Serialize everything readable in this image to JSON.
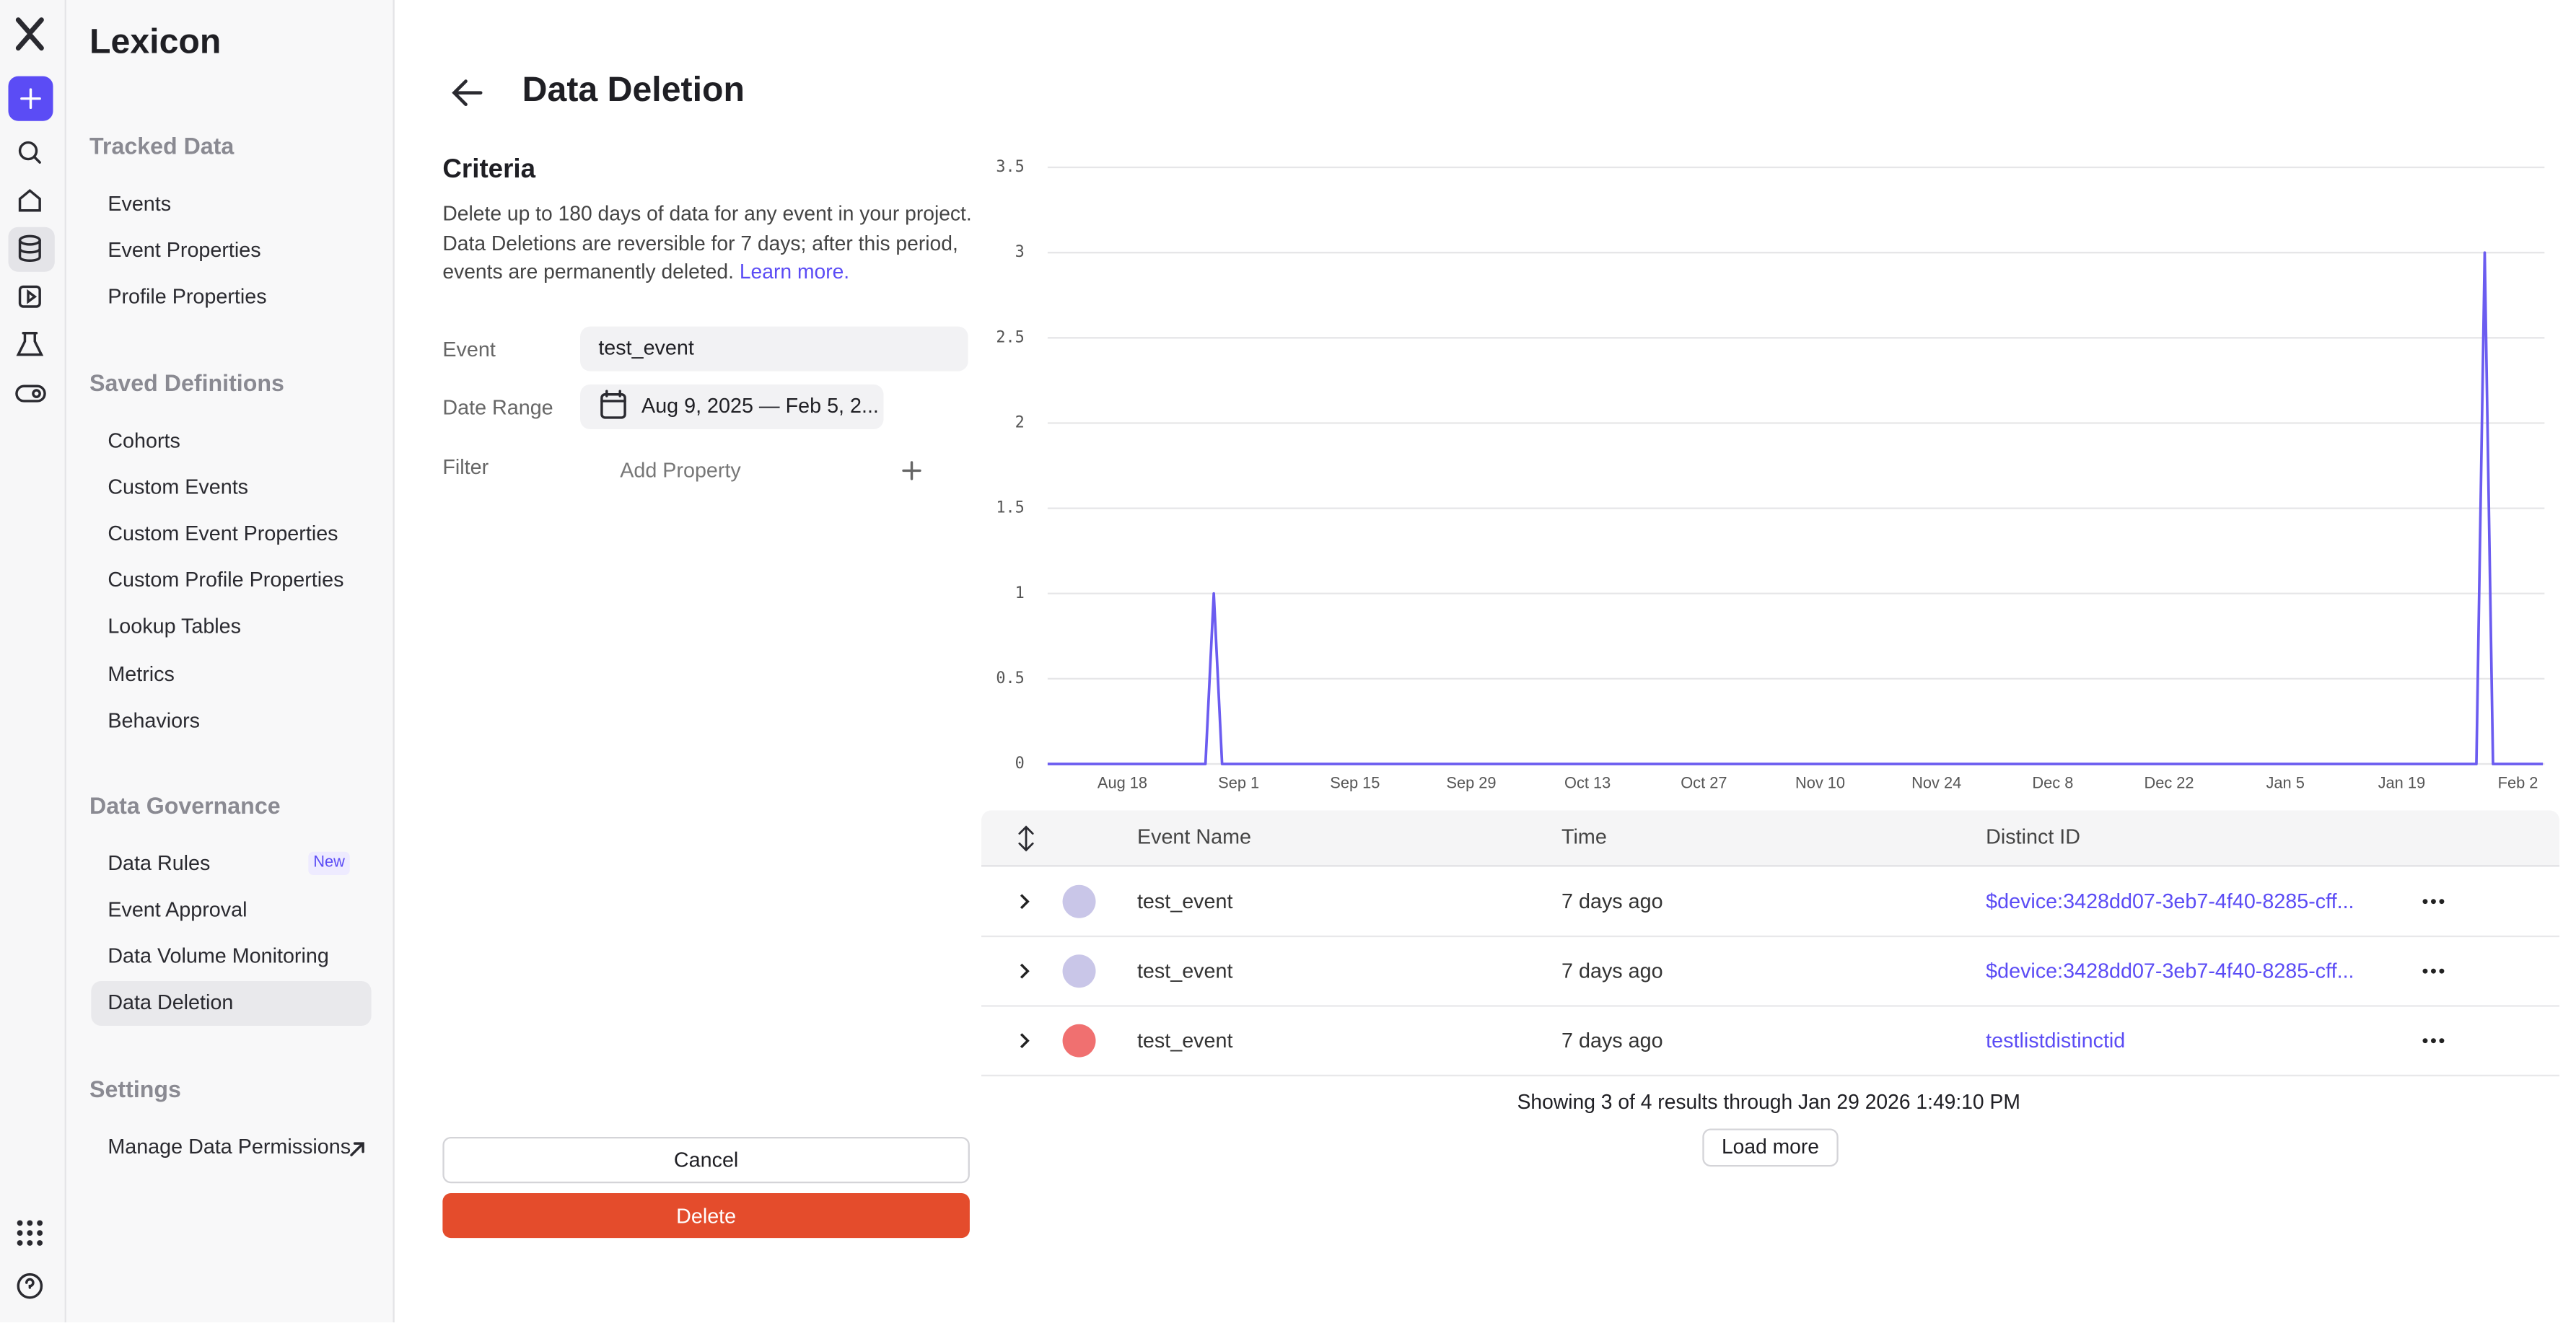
{
  "app": {
    "name": "Lexicon"
  },
  "sidebar": {
    "sections": [
      {
        "title": "Tracked Data",
        "items": [
          "Events",
          "Event Properties",
          "Profile Properties"
        ]
      },
      {
        "title": "Saved Definitions",
        "items": [
          "Cohorts",
          "Custom Events",
          "Custom Event Properties",
          "Custom Profile Properties",
          "Lookup Tables",
          "Metrics",
          "Behaviors"
        ]
      },
      {
        "title": "Data Governance",
        "items": [
          "Data Rules",
          "Event Approval",
          "Data Volume Monitoring",
          "Data Deletion"
        ]
      },
      {
        "title": "Settings",
        "items": [
          "Manage Data Permissions"
        ]
      }
    ],
    "badge": "New"
  },
  "page": {
    "title": "Data Deletion"
  },
  "criteria": {
    "title": "Criteria",
    "description": "Delete up to 180 days of data for any event in your project. Data Deletions are reversible for 7 days; after this period, events are permanently deleted.",
    "link": "Learn more.",
    "event_label": "Event",
    "event_value": "test_event",
    "date_label": "Date Range",
    "date_value": "Aug 9, 2025 — Feb 5, 2...",
    "filter_label": "Filter",
    "filter_placeholder": "Add Property"
  },
  "buttons": {
    "cancel": "Cancel",
    "delete": "Delete"
  },
  "chart_data": {
    "type": "line",
    "color": "#6b5cf0",
    "grid": true,
    "categories": [
      null,
      null,
      null,
      null,
      null,
      null,
      null,
      null,
      null,
      "Aug 18",
      null,
      null,
      null,
      null,
      null,
      null,
      null,
      null,
      null,
      null,
      null,
      null,
      null,
      "Sep 1",
      null,
      null,
      null,
      null,
      null,
      null,
      null,
      null,
      null,
      null,
      null,
      null,
      null,
      "Sep 15",
      null,
      null,
      null,
      null,
      null,
      null,
      null,
      null,
      null,
      null,
      null,
      null,
      null,
      "Sep 29",
      null,
      null,
      null,
      null,
      null,
      null,
      null,
      null,
      null,
      null,
      null,
      null,
      null,
      "Oct 13",
      null,
      null,
      null,
      null,
      null,
      null,
      null,
      null,
      null,
      null,
      null,
      null,
      null,
      "Oct 27",
      null,
      null,
      null,
      null,
      null,
      null,
      null,
      null,
      null,
      null,
      null,
      null,
      null,
      "Nov 10",
      null,
      null,
      null,
      null,
      null,
      null,
      null,
      null,
      null,
      null,
      null,
      null,
      null,
      "Nov 24",
      null,
      null,
      null,
      null,
      null,
      null,
      null,
      null,
      null,
      null,
      null,
      null,
      null,
      "Dec 8",
      null,
      null,
      null,
      null,
      null,
      null,
      null,
      null,
      null,
      null,
      null,
      null,
      null,
      "Dec 22",
      null,
      null,
      null,
      null,
      null,
      null,
      null,
      null,
      null,
      null,
      null,
      null,
      null,
      "Jan 5",
      null,
      null,
      null,
      null,
      null,
      null,
      null,
      null,
      null,
      null,
      null,
      null,
      null,
      "Jan 19",
      null,
      null,
      null,
      null,
      null,
      null,
      null,
      null,
      null,
      null,
      null,
      null,
      null,
      "Feb 2",
      null,
      null,
      null
    ],
    "values": [
      0,
      0,
      0,
      0,
      0,
      0,
      0,
      0,
      0,
      0,
      0,
      0,
      0,
      0,
      0,
      0,
      0,
      0,
      0,
      0,
      1,
      0,
      0,
      0,
      0,
      0,
      0,
      0,
      0,
      0,
      0,
      0,
      0,
      0,
      0,
      0,
      0,
      0,
      0,
      0,
      0,
      0,
      0,
      0,
      0,
      0,
      0,
      0,
      0,
      0,
      0,
      0,
      0,
      0,
      0,
      0,
      0,
      0,
      0,
      0,
      0,
      0,
      0,
      0,
      0,
      0,
      0,
      0,
      0,
      0,
      0,
      0,
      0,
      0,
      0,
      0,
      0,
      0,
      0,
      0,
      0,
      0,
      0,
      0,
      0,
      0,
      0,
      0,
      0,
      0,
      0,
      0,
      0,
      0,
      0,
      0,
      0,
      0,
      0,
      0,
      0,
      0,
      0,
      0,
      0,
      0,
      0,
      0,
      0,
      0,
      0,
      0,
      0,
      0,
      0,
      0,
      0,
      0,
      0,
      0,
      0,
      0,
      0,
      0,
      0,
      0,
      0,
      0,
      0,
      0,
      0,
      0,
      0,
      0,
      0,
      0,
      0,
      0,
      0,
      0,
      0,
      0,
      0,
      0,
      0,
      0,
      0,
      0,
      0,
      0,
      0,
      0,
      0,
      0,
      0,
      0,
      0,
      0,
      0,
      0,
      0,
      0,
      0,
      0,
      0,
      0,
      0,
      0,
      0,
      0,
      0,
      0,
      0,
      3,
      0,
      0,
      0,
      0,
      0,
      0,
      0
    ],
    "ylim": [
      0,
      3.5
    ],
    "yticks": [
      0,
      0.5,
      1,
      1.5,
      2,
      2.5,
      3,
      3.5
    ]
  },
  "table": {
    "columns": [
      "Event Name",
      "Time",
      "Distinct ID"
    ],
    "rows": [
      [
        "test_event",
        "7 days ago",
        "$device:3428dd07-3eb7-4f40-8285-cff..."
      ],
      [
        "test_event",
        "7 days ago",
        "$device:3428dd07-3eb7-4f40-8285-cff..."
      ],
      [
        "test_event",
        "7 days ago",
        "testlistdistinctid"
      ]
    ],
    "footer": "Showing 3 of 4 results through Jan 29 2026 1:49:10 PM",
    "load_more": "Load more"
  }
}
